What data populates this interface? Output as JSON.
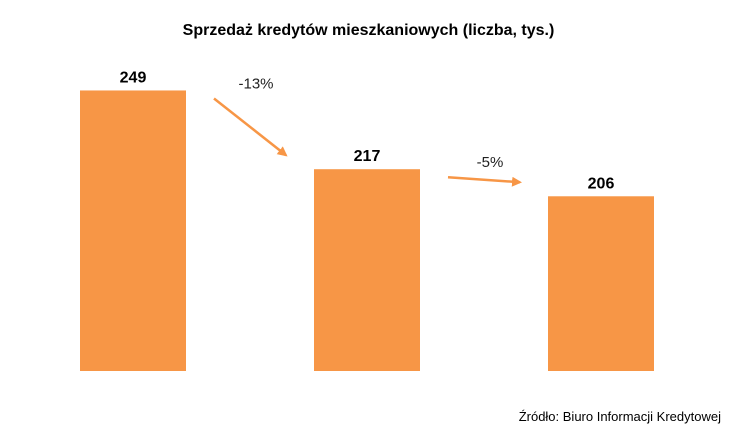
{
  "chart_data": {
    "type": "bar",
    "title": "Sprzedaż kredytów mieszkaniowych (liczba, tys.)",
    "categories": [
      "",
      "",
      ""
    ],
    "values": [
      249,
      217,
      206
    ],
    "data_labels": [
      "249",
      "217",
      "206"
    ],
    "changes": [
      {
        "from": 0,
        "to": 1,
        "label": "-13%"
      },
      {
        "from": 1,
        "to": 2,
        "label": "-5%"
      }
    ],
    "xlabel": "",
    "ylabel": "",
    "ylim": [
      135,
      250
    ],
    "grid": false,
    "legend": "none",
    "bar_color": "#F79646",
    "arrow_color": "#F79646",
    "source": "Źródło: Biuro Informacji Kredytowej"
  }
}
